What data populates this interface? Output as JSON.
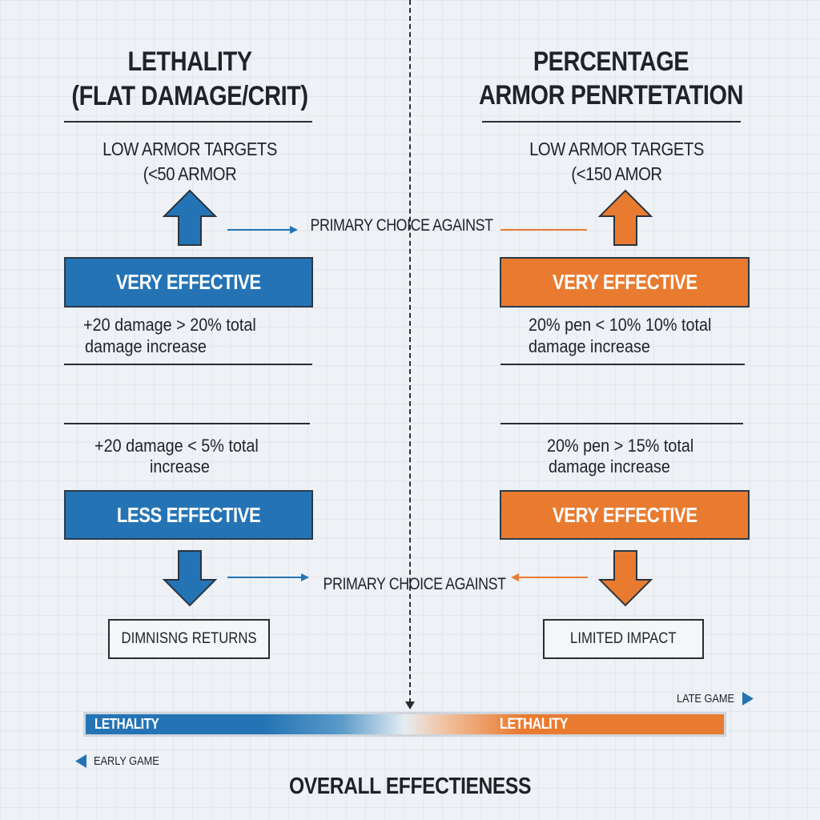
{
  "colors": {
    "blue": "#2474b5",
    "orange": "#e97b30",
    "text": "#1f2328"
  },
  "left": {
    "title_line1": "LETHALITY",
    "title_line2": "(FLAT DAMAGE/CRIT)",
    "target_line1": "LOW ARMOR TARGETS",
    "target_line2": "(<50 ARMOR",
    "top_box": "VERY EFFECTIVE",
    "top_desc_line1": "+20 damage > 20% total",
    "top_desc_line2": "damage increase",
    "bottom_desc_line1": "+20 damage < 5% total",
    "bottom_desc_line2": "increase",
    "bottom_box": "LESS EFFECTIVE",
    "outcome": "DIMNISNG RETURNS"
  },
  "right": {
    "title_line1": "PERCENTAGE",
    "title_line2": "ARMOR PENRTETATION",
    "target_line1": "LOW ARMOR TARGETS",
    "target_line2": "(<150 AMOR",
    "top_box": "VERY EFFECTIVE",
    "top_desc_line1": "20% pen < 10% 10% total",
    "top_desc_line2": "damage increase",
    "bottom_desc_line1": "20% pen > 15% total",
    "bottom_desc_line2": "damage increase",
    "bottom_box": "VERY EFFECTIVE",
    "outcome": "LIMITED IMPACT"
  },
  "center": {
    "top_connector": "PRIMARY CHOICE AGAINST",
    "bottom_connector": "PRIMARY CHOICE AGAINST"
  },
  "scale": {
    "left_label": "LETHALITY",
    "right_label": "LETHALITY",
    "late_game": "LATE GAME",
    "early_game": "EARLY GAME",
    "caption": "OVERALL EFFECTIENESS"
  }
}
